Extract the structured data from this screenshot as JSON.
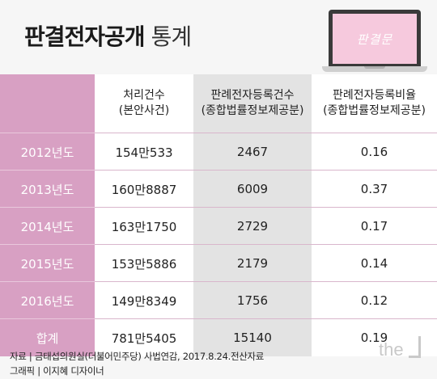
{
  "title": {
    "bold": "판결전자공개",
    "light": "통계"
  },
  "laptop_screen_text": "판결문",
  "table": {
    "headers": [
      {
        "line1": "",
        "line2": ""
      },
      {
        "line1": "처리건수",
        "line2": "(본안사건)"
      },
      {
        "line1": "판례전자등록건수",
        "line2": "(종합법률정보제공분)"
      },
      {
        "line1": "판례전자등록비율",
        "line2": "(종합법률정보제공분)"
      }
    ],
    "rows": [
      {
        "year": "2012년도",
        "processed": "154만533",
        "registered": "2467",
        "ratio": "0.16"
      },
      {
        "year": "2013년도",
        "processed": "160만8887",
        "registered": "6009",
        "ratio": "0.37"
      },
      {
        "year": "2014년도",
        "processed": "163만1750",
        "registered": "2729",
        "ratio": "0.17"
      },
      {
        "year": "2015년도",
        "processed": "153만5886",
        "registered": "2179",
        "ratio": "0.14"
      },
      {
        "year": "2016년도",
        "processed": "149만8349",
        "registered": "1756",
        "ratio": "0.12"
      },
      {
        "year": "합계",
        "processed": "781만5405",
        "registered": "15140",
        "ratio": "0.19"
      }
    ]
  },
  "source": "자료 | 금태섭의원실(더불어민주당) 사법연감, 2017.8.24.전산자료",
  "credit": "그래픽 | 이지혜 디자이너",
  "brand": "the",
  "chart_data": {
    "type": "table",
    "title": "판결전자공개 통계",
    "columns": [
      "",
      "처리건수 (본안사건)",
      "판례전자등록건수 (종합법률정보제공분)",
      "판례전자등록비율 (종합법률정보제공분)"
    ],
    "rows": [
      [
        "2012년도",
        "154만533",
        2467,
        0.16
      ],
      [
        "2013년도",
        "160만8887",
        6009,
        0.37
      ],
      [
        "2014년도",
        "163만1750",
        2729,
        0.17
      ],
      [
        "2015년도",
        "153만5886",
        2179,
        0.14
      ],
      [
        "2016년도",
        "149만8349",
        1756,
        0.12
      ],
      [
        "합계",
        "781만5405",
        15140,
        0.19
      ]
    ]
  }
}
